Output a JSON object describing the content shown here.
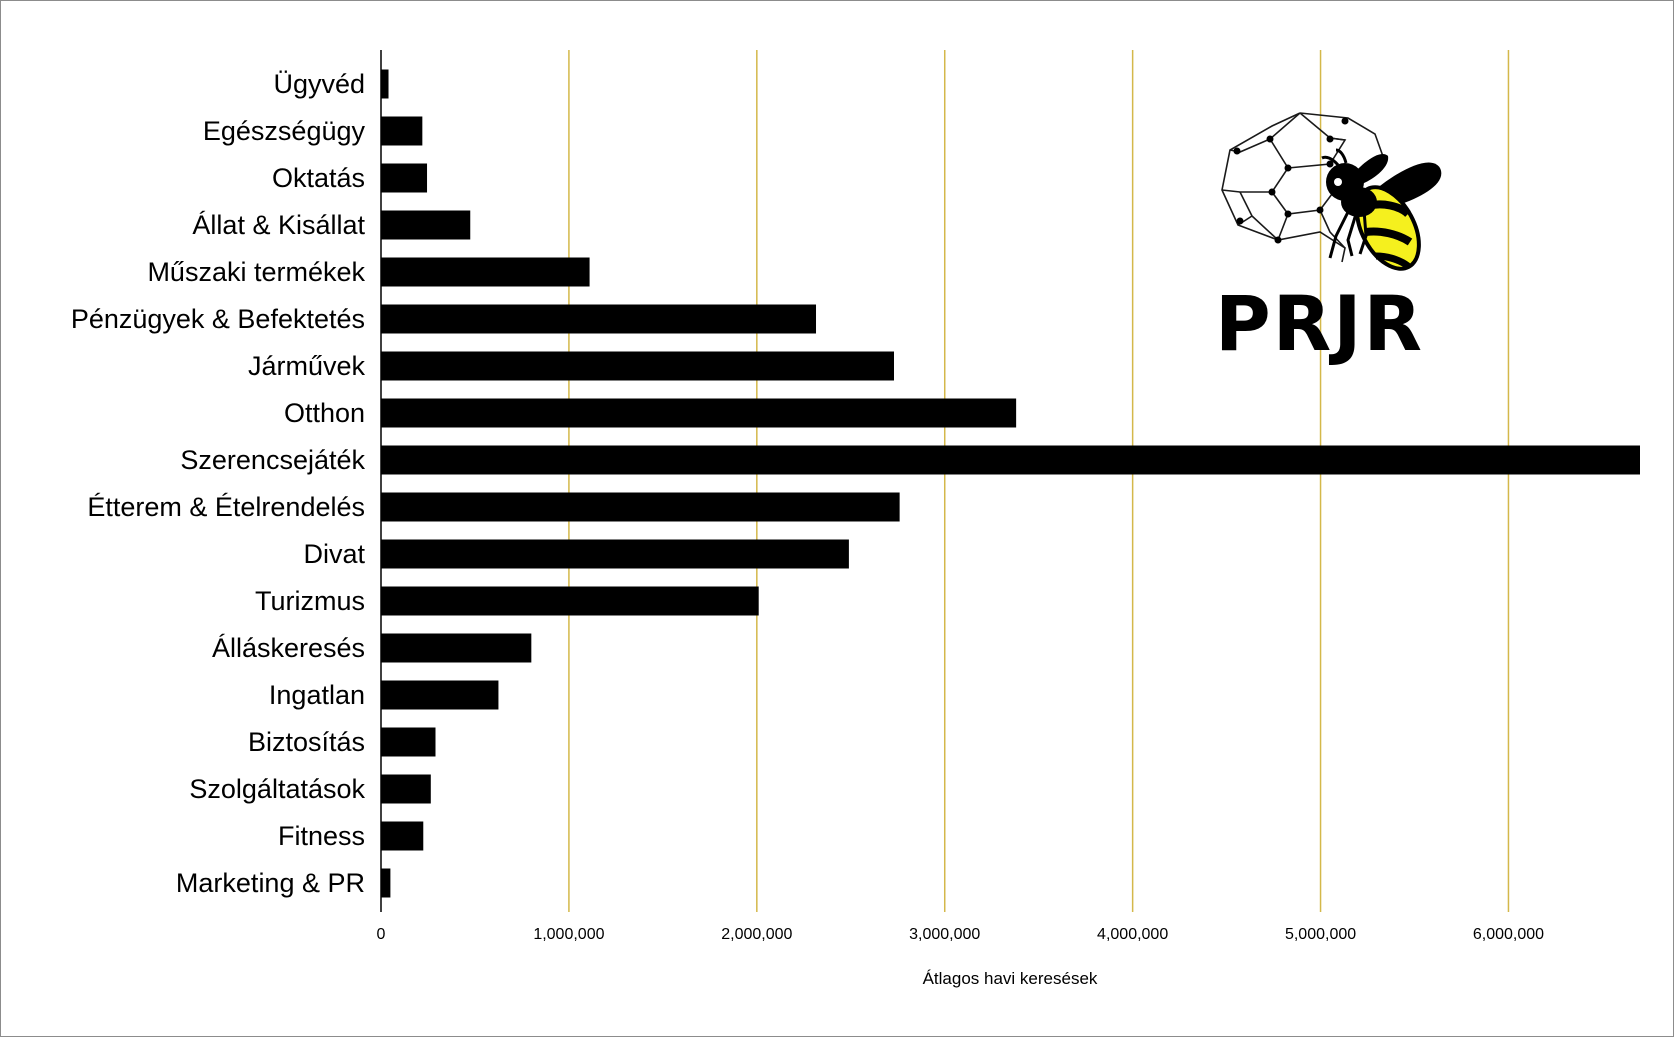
{
  "chart_data": {
    "type": "bar",
    "orientation": "horizontal",
    "categories": [
      "Ügyvéd",
      "Egészségügy",
      "Oktatás",
      "Állat & Kisállat",
      "Műszaki termékek",
      "Pénzügyek & Befektetés",
      "Járművek",
      "Otthon",
      "Szerencsejáték",
      "Étterem & Ételrendelés",
      "Divat",
      "Turizmus",
      "Álláskeresés",
      "Ingatlan",
      "Biztosítás",
      "Szolgáltatások",
      "Fitness",
      "Marketing & PR"
    ],
    "values": [
      40000,
      220000,
      245000,
      475000,
      1110000,
      2315000,
      2730000,
      3380000,
      6700000,
      2760000,
      2490000,
      2010000,
      800000,
      625000,
      290000,
      265000,
      225000,
      50000
    ],
    "xlabel": "Átlagos havi keresések",
    "xlim": [
      0,
      6700000
    ],
    "xticks": [
      0,
      1000000,
      2000000,
      3000000,
      4000000,
      5000000,
      6000000
    ],
    "xtick_labels": [
      "0",
      "1,000,000",
      "2,000,000",
      "3,000,000",
      "4,000,000",
      "5,000,000",
      "6,000,000"
    ],
    "grid": "vertical",
    "colors": {
      "bar": "#000000",
      "grid": "#d4b84a",
      "axis": "#000000",
      "bee_yellow": "#f5f01e"
    }
  },
  "logo": {
    "text": "PRJR",
    "icon": "bee-icon"
  }
}
